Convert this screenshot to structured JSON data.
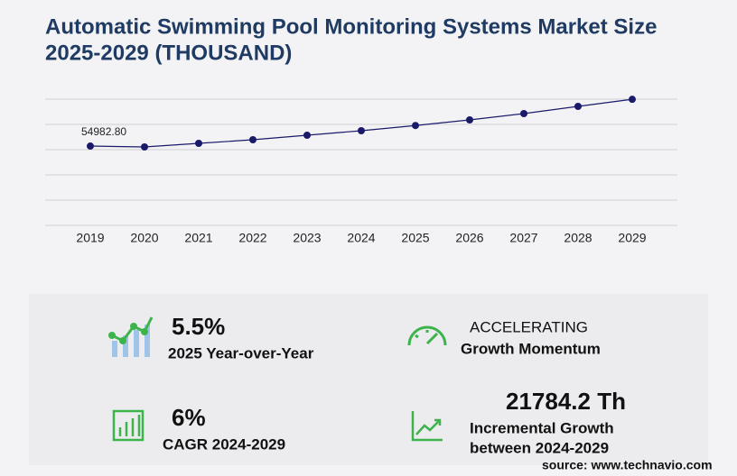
{
  "chart_data": {
    "type": "line",
    "title_lines": [
      "Automatic Swimming Pool Monitoring Systems Market Size",
      "2025-2029 (THOUSAND)"
    ],
    "categories": [
      "2019",
      "2020",
      "2021",
      "2022",
      "2023",
      "2024",
      "2025",
      "2026",
      "2027",
      "2028",
      "2029"
    ],
    "values": [
      54982.8,
      54375,
      56875,
      59375,
      62500,
      65625,
      69234,
      73125,
      77500,
      82500,
      87409
    ],
    "value_labels": [
      "54982.80",
      null,
      null,
      null,
      null,
      null,
      null,
      null,
      null,
      null,
      null
    ],
    "color": "#1a1a6b",
    "ylim": [
      0,
      87500
    ],
    "yticks": [
      0,
      17500,
      35000,
      52500,
      70000,
      87500
    ],
    "grid": true
  },
  "stats": [
    {
      "value": "5.5%",
      "label": "2025 Year-over-Year"
    },
    {
      "value": "ACCELERATING",
      "label": "Growth Momentum"
    },
    {
      "value": "6%",
      "label": "CAGR 2024-2029"
    },
    {
      "value": "21784.2 Th",
      "label": "Incremental Growth",
      "label2": "between 2024-2029"
    }
  ],
  "source": "source: www.technavio.com"
}
